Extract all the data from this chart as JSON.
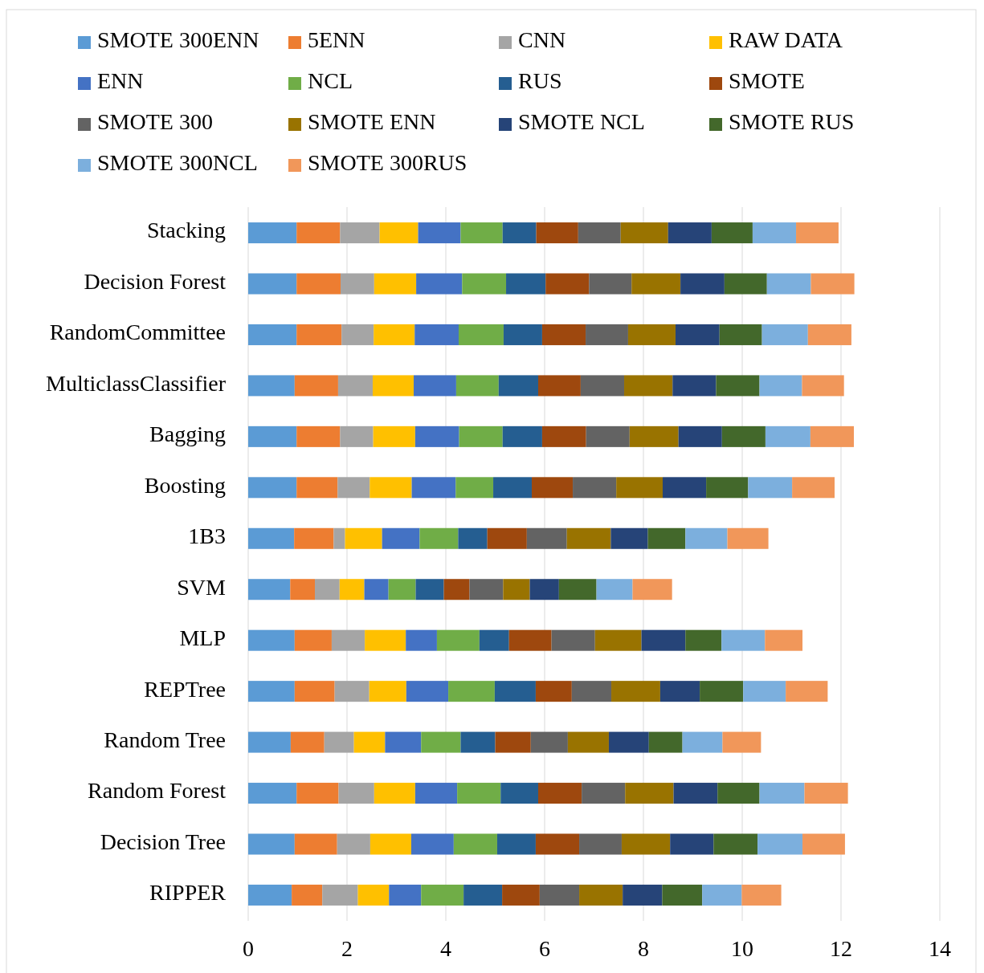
{
  "chart_data": {
    "type": "bar",
    "orientation": "horizontal",
    "stacked": true,
    "legend": "top",
    "grid": "x",
    "categories": [
      "Stacking",
      "Decision Forest",
      "RandomCommittee",
      "MulticlassClassifier",
      "Bagging",
      "Boosting",
      "1B3",
      "SVM",
      "MLP",
      "REPTree",
      "Random Tree",
      "Random Forest",
      "Decision Tree",
      "RIPPER"
    ],
    "xlim": [
      0,
      14
    ],
    "xticks": [
      0,
      2,
      4,
      6,
      8,
      10,
      12,
      14
    ],
    "series": [
      {
        "name": "SMOTE 300ENN",
        "color": "#5b9bd5",
        "values": [
          0.98,
          0.98,
          0.98,
          0.94,
          0.98,
          0.98,
          0.93,
          0.85,
          0.94,
          0.94,
          0.86,
          0.98,
          0.94,
          0.88
        ]
      },
      {
        "name": "5ENN",
        "color": "#ed7d31",
        "values": [
          0.88,
          0.89,
          0.91,
          0.88,
          0.88,
          0.83,
          0.8,
          0.5,
          0.75,
          0.81,
          0.68,
          0.85,
          0.86,
          0.62
        ]
      },
      {
        "name": "CNN",
        "color": "#a5a5a5",
        "values": [
          0.8,
          0.68,
          0.65,
          0.7,
          0.67,
          0.65,
          0.23,
          0.5,
          0.67,
          0.7,
          0.6,
          0.72,
          0.67,
          0.72
        ]
      },
      {
        "name": "RAW DATA",
        "color": "#ffc000",
        "values": [
          0.78,
          0.85,
          0.83,
          0.83,
          0.85,
          0.85,
          0.75,
          0.5,
          0.83,
          0.75,
          0.63,
          0.83,
          0.83,
          0.63
        ]
      },
      {
        "name": "ENN",
        "color": "#4472c4",
        "values": [
          0.86,
          0.93,
          0.89,
          0.86,
          0.89,
          0.89,
          0.76,
          0.49,
          0.63,
          0.85,
          0.73,
          0.85,
          0.86,
          0.65
        ]
      },
      {
        "name": "NCL",
        "color": "#70ad47",
        "values": [
          0.85,
          0.89,
          0.91,
          0.86,
          0.88,
          0.76,
          0.78,
          0.55,
          0.86,
          0.94,
          0.8,
          0.88,
          0.88,
          0.86
        ]
      },
      {
        "name": "RUS",
        "color": "#255e91",
        "values": [
          0.68,
          0.8,
          0.78,
          0.8,
          0.8,
          0.78,
          0.59,
          0.57,
          0.6,
          0.83,
          0.7,
          0.76,
          0.78,
          0.78
        ]
      },
      {
        "name": "SMOTE",
        "color": "#9e480e",
        "values": [
          0.85,
          0.88,
          0.88,
          0.86,
          0.89,
          0.83,
          0.8,
          0.52,
          0.86,
          0.73,
          0.72,
          0.88,
          0.88,
          0.76
        ]
      },
      {
        "name": "SMOTE 300",
        "color": "#636363",
        "values": [
          0.86,
          0.86,
          0.86,
          0.88,
          0.88,
          0.88,
          0.81,
          0.68,
          0.88,
          0.8,
          0.75,
          0.88,
          0.86,
          0.8
        ]
      },
      {
        "name": "SMOTE ENN",
        "color": "#997300",
        "values": [
          0.96,
          0.99,
          0.96,
          0.98,
          0.99,
          0.94,
          0.89,
          0.54,
          0.94,
          0.99,
          0.83,
          0.98,
          0.98,
          0.88
        ]
      },
      {
        "name": "SMOTE NCL",
        "color": "#264478",
        "values": [
          0.88,
          0.89,
          0.89,
          0.88,
          0.88,
          0.88,
          0.75,
          0.59,
          0.89,
          0.8,
          0.81,
          0.89,
          0.88,
          0.8
        ]
      },
      {
        "name": "SMOTE RUS",
        "color": "#43682b",
        "values": [
          0.83,
          0.86,
          0.86,
          0.88,
          0.88,
          0.85,
          0.76,
          0.76,
          0.73,
          0.88,
          0.68,
          0.85,
          0.89,
          0.81
        ]
      },
      {
        "name": "SMOTE 300NCL",
        "color": "#7cafdd",
        "values": [
          0.88,
          0.89,
          0.93,
          0.86,
          0.91,
          0.89,
          0.85,
          0.73,
          0.88,
          0.86,
          0.81,
          0.91,
          0.91,
          0.8
        ]
      },
      {
        "name": "SMOTE 300RUS",
        "color": "#f1975a",
        "values": [
          0.86,
          0.88,
          0.88,
          0.85,
          0.88,
          0.86,
          0.83,
          0.8,
          0.76,
          0.85,
          0.78,
          0.88,
          0.86,
          0.8
        ]
      }
    ]
  }
}
